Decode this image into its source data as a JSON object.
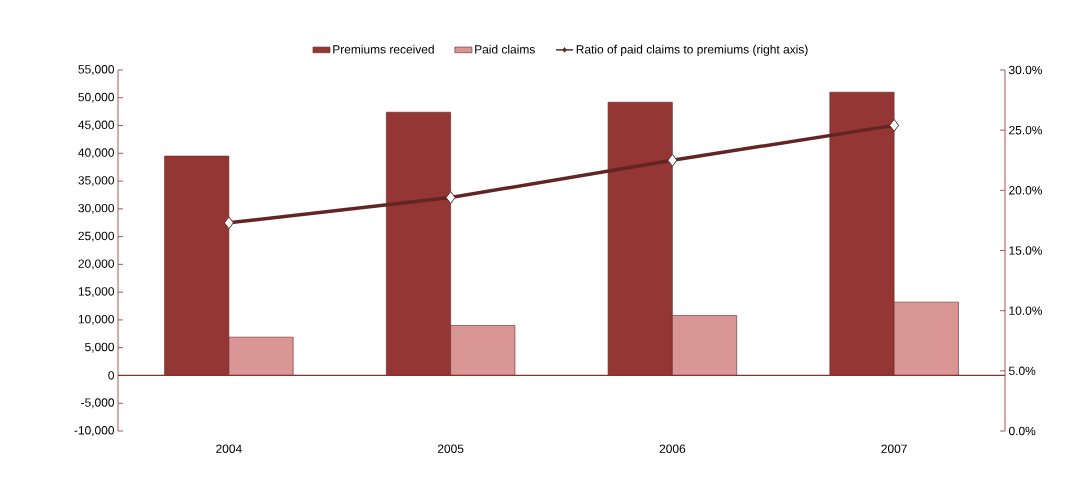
{
  "chart_data": {
    "type": "bar",
    "categories": [
      "2004",
      "2005",
      "2006",
      "2007"
    ],
    "series": [
      {
        "name": "Premiums received",
        "color": "#943634",
        "values": [
          39500,
          47400,
          49200,
          51000
        ]
      },
      {
        "name": "Paid claims",
        "color": "#d99694",
        "values": [
          6900,
          9000,
          10800,
          13200
        ]
      },
      {
        "name": "Ratio of paid claims to premiums (right axis)",
        "type": "line",
        "axis": "y2",
        "color": "#632523",
        "values": [
          17.3,
          19.4,
          22.5,
          25.4
        ]
      }
    ],
    "ylim": [
      -10000,
      55000
    ],
    "yticks": [
      {
        "value": -10000,
        "label": "-10,000"
      },
      {
        "value": -5000,
        "label": "-5,000"
      },
      {
        "value": 0,
        "label": "0"
      },
      {
        "value": 5000,
        "label": "5,000"
      },
      {
        "value": 10000,
        "label": "10,000"
      },
      {
        "value": 15000,
        "label": "15,000"
      },
      {
        "value": 20000,
        "label": "20,000"
      },
      {
        "value": 25000,
        "label": "25,000"
      },
      {
        "value": 30000,
        "label": "30,000"
      },
      {
        "value": 35000,
        "label": "35,000"
      },
      {
        "value": 40000,
        "label": "40,000"
      },
      {
        "value": 45000,
        "label": "45,000"
      },
      {
        "value": 50000,
        "label": "50,000"
      },
      {
        "value": 55000,
        "label": "55,000"
      }
    ],
    "y2lim": [
      0,
      30
    ],
    "y2ticks": [
      {
        "value": 0,
        "label": "0.0%"
      },
      {
        "value": 5,
        "label": "5.0%"
      },
      {
        "value": 10,
        "label": "10.0%"
      },
      {
        "value": 15,
        "label": "15.0%"
      },
      {
        "value": 20,
        "label": "20.0%"
      },
      {
        "value": 25,
        "label": "25.0%"
      },
      {
        "value": 30,
        "label": "30.0%"
      }
    ],
    "ref_lines": [
      {
        "axis": "y",
        "value": 0,
        "color": "#942c2c"
      }
    ],
    "marker": "diamond",
    "legend": "top",
    "grid": false
  }
}
